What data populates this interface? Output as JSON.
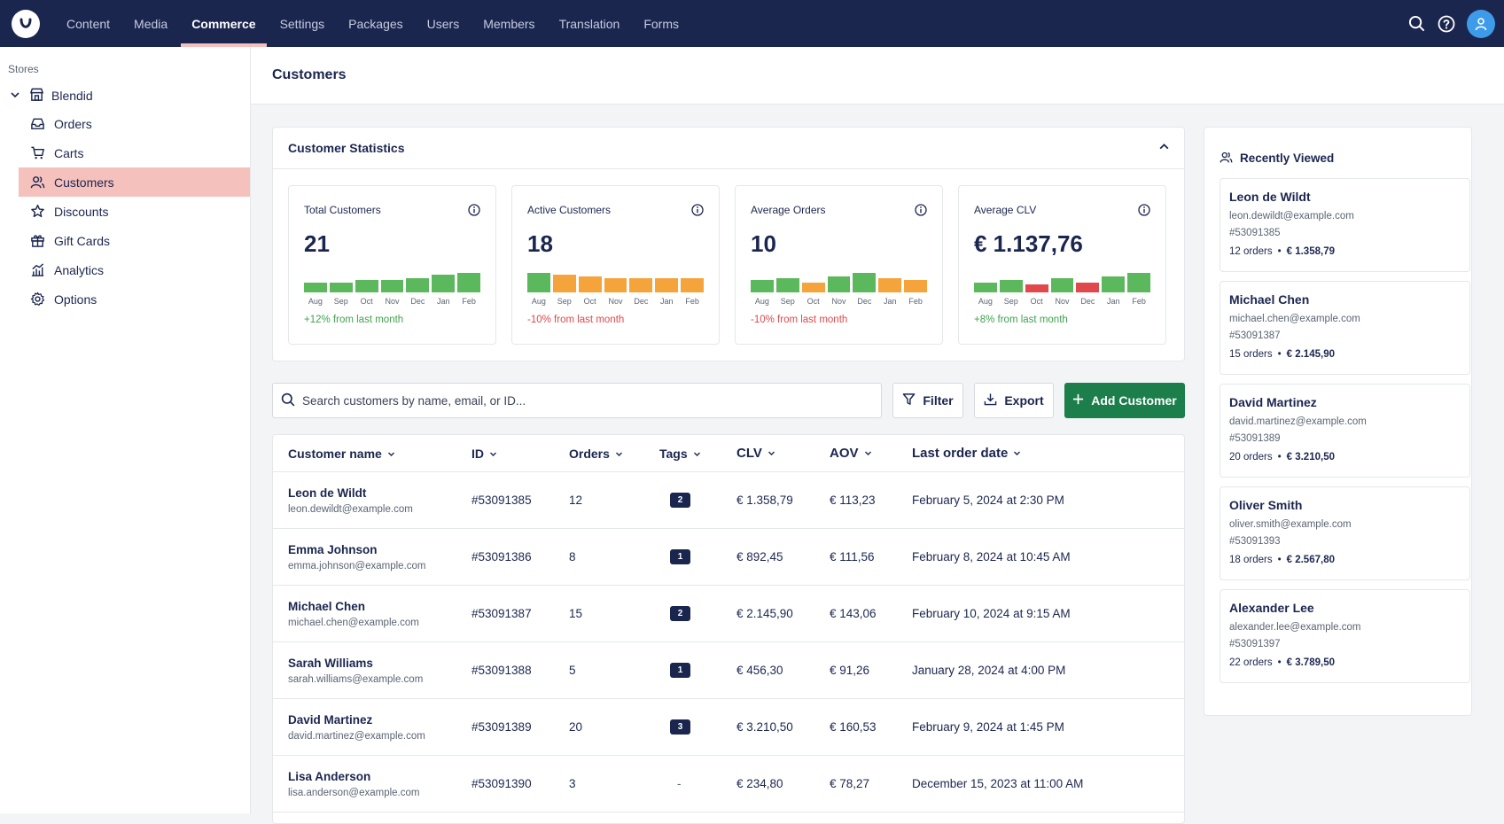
{
  "topbar": {
    "nav": [
      "Content",
      "Media",
      "Commerce",
      "Settings",
      "Packages",
      "Users",
      "Members",
      "Translation",
      "Forms"
    ],
    "active": "Commerce"
  },
  "sidebar": {
    "section_label": "Stores",
    "store": "Blendid",
    "items": [
      "Orders",
      "Carts",
      "Customers",
      "Discounts",
      "Gift Cards",
      "Analytics",
      "Options"
    ],
    "active": "Customers"
  },
  "page": {
    "title": "Customers"
  },
  "stats": {
    "title": "Customer Statistics",
    "months": [
      "Aug",
      "Sep",
      "Oct",
      "Nov",
      "Dec",
      "Jan",
      "Feb"
    ],
    "cards": [
      {
        "title": "Total Customers",
        "value": "21",
        "change": "+12% from last month",
        "trend": "pos",
        "bar_levels": [
          0.42,
          0.42,
          0.52,
          0.52,
          0.62,
          0.78,
          0.86
        ],
        "bar_colors": [
          "green",
          "green",
          "green",
          "green",
          "green",
          "green",
          "green"
        ]
      },
      {
        "title": "Active Customers",
        "value": "18",
        "change": "-10% from last month",
        "trend": "neg",
        "bar_levels": [
          0.86,
          0.78,
          0.7,
          0.62,
          0.62,
          0.62,
          0.62
        ],
        "bar_colors": [
          "green",
          "orange",
          "orange",
          "orange",
          "orange",
          "orange",
          "orange"
        ]
      },
      {
        "title": "Average Orders",
        "value": "10",
        "change": "-10% from last month",
        "trend": "neg",
        "bar_levels": [
          0.52,
          0.62,
          0.42,
          0.7,
          0.86,
          0.62,
          0.52
        ],
        "bar_colors": [
          "green",
          "green",
          "orange",
          "green",
          "green",
          "orange",
          "orange"
        ]
      },
      {
        "title": "Average CLV",
        "value": "€ 1.137,76",
        "change": "+8% from last month",
        "trend": "pos",
        "bar_levels": [
          0.42,
          0.52,
          0.36,
          0.62,
          0.42,
          0.7,
          0.86
        ],
        "bar_colors": [
          "green",
          "green",
          "red",
          "green",
          "red",
          "green",
          "green"
        ]
      }
    ]
  },
  "toolbar": {
    "search_placeholder": "Search customers by name, email, or ID...",
    "filter_label": "Filter",
    "export_label": "Export",
    "add_label": "Add Customer"
  },
  "table": {
    "columns": [
      "Customer name",
      "ID",
      "Orders",
      "Tags",
      "CLV",
      "AOV",
      "Last order date"
    ],
    "rows": [
      {
        "name": "Leon de Wildt",
        "email": "leon.dewildt@example.com",
        "id": "#53091385",
        "orders": "12",
        "tags": "2",
        "clv": "€ 1.358,79",
        "aov": "€ 113,23",
        "last": "February 5, 2024 at 2:30 PM"
      },
      {
        "name": "Emma Johnson",
        "email": "emma.johnson@example.com",
        "id": "#53091386",
        "orders": "8",
        "tags": "1",
        "clv": "€ 892,45",
        "aov": "€ 111,56",
        "last": "February 8, 2024 at 10:45 AM"
      },
      {
        "name": "Michael Chen",
        "email": "michael.chen@example.com",
        "id": "#53091387",
        "orders": "15",
        "tags": "2",
        "clv": "€ 2.145,90",
        "aov": "€ 143,06",
        "last": "February 10, 2024 at 9:15 AM"
      },
      {
        "name": "Sarah Williams",
        "email": "sarah.williams@example.com",
        "id": "#53091388",
        "orders": "5",
        "tags": "1",
        "clv": "€ 456,30",
        "aov": "€ 91,26",
        "last": "January 28, 2024 at 4:00 PM"
      },
      {
        "name": "David Martinez",
        "email": "david.martinez@example.com",
        "id": "#53091389",
        "orders": "20",
        "tags": "3",
        "clv": "€ 3.210,50",
        "aov": "€ 160,53",
        "last": "February 9, 2024 at 1:45 PM"
      },
      {
        "name": "Lisa Anderson",
        "email": "lisa.anderson@example.com",
        "id": "#53091390",
        "orders": "3",
        "tags": "-",
        "clv": "€ 234,80",
        "aov": "€ 78,27",
        "last": "December 15, 2023 at 11:00 AM"
      }
    ]
  },
  "recent": {
    "title": "Recently Viewed",
    "bullet": "•",
    "items": [
      {
        "name": "Leon de Wildt",
        "email": "leon.dewildt@example.com",
        "id": "#53091385",
        "orders": "12 orders",
        "total": "€ 1.358,79"
      },
      {
        "name": "Michael Chen",
        "email": "michael.chen@example.com",
        "id": "#53091387",
        "orders": "15 orders",
        "total": "€ 2.145,90"
      },
      {
        "name": "David Martinez",
        "email": "david.martinez@example.com",
        "id": "#53091389",
        "orders": "20 orders",
        "total": "€ 3.210,50"
      },
      {
        "name": "Oliver Smith",
        "email": "oliver.smith@example.com",
        "id": "#53091393",
        "orders": "18 orders",
        "total": "€ 2.567,80"
      },
      {
        "name": "Alexander Lee",
        "email": "alexander.lee@example.com",
        "id": "#53091397",
        "orders": "22 orders",
        "total": "€ 3.789,50"
      }
    ]
  },
  "colors": {
    "green": "#5cb85c",
    "orange": "#f5a43c",
    "red": "#e0484b",
    "navy": "#1b264f",
    "primary": "#1c7e4b",
    "highlight": "#f5c1bc"
  }
}
